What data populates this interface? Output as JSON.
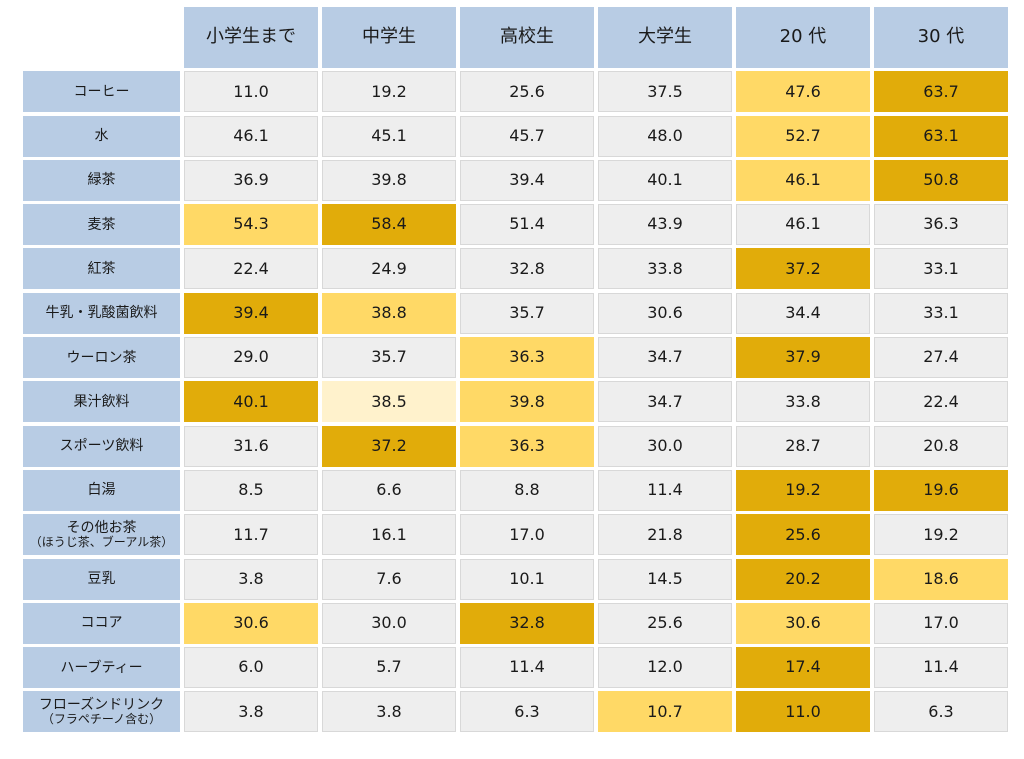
{
  "chart_data": {
    "type": "table",
    "columns": [
      "小学生まで",
      "中学生",
      "高校生",
      "大学生",
      "20 代",
      "30 代"
    ],
    "rows": [
      {
        "label": "コーヒー",
        "values": [
          11.0,
          19.2,
          25.6,
          37.5,
          47.6,
          63.7
        ],
        "highlight": [
          0,
          0,
          0,
          0,
          2,
          3
        ]
      },
      {
        "label": "水",
        "values": [
          46.1,
          45.1,
          45.7,
          48.0,
          52.7,
          63.1
        ],
        "highlight": [
          0,
          0,
          0,
          0,
          2,
          3
        ]
      },
      {
        "label": "緑茶",
        "values": [
          36.9,
          39.8,
          39.4,
          40.1,
          46.1,
          50.8
        ],
        "highlight": [
          0,
          0,
          0,
          0,
          2,
          3
        ]
      },
      {
        "label": "麦茶",
        "values": [
          54.3,
          58.4,
          51.4,
          43.9,
          46.1,
          36.3
        ],
        "highlight": [
          2,
          3,
          0,
          0,
          0,
          0
        ]
      },
      {
        "label": "紅茶",
        "values": [
          22.4,
          24.9,
          32.8,
          33.8,
          37.2,
          33.1
        ],
        "highlight": [
          0,
          0,
          0,
          0,
          3,
          0
        ]
      },
      {
        "label": "牛乳・乳酸菌飲料",
        "values": [
          39.4,
          38.8,
          35.7,
          30.6,
          34.4,
          33.1
        ],
        "highlight": [
          3,
          2,
          0,
          0,
          0,
          0
        ]
      },
      {
        "label": "ウーロン茶",
        "values": [
          29.0,
          35.7,
          36.3,
          34.7,
          37.9,
          27.4
        ],
        "highlight": [
          0,
          0,
          2,
          0,
          3,
          0
        ]
      },
      {
        "label": "果汁飲料",
        "values": [
          40.1,
          38.5,
          39.8,
          34.7,
          33.8,
          22.4
        ],
        "highlight": [
          3,
          1,
          2,
          0,
          0,
          0
        ]
      },
      {
        "label": "スポーツ飲料",
        "values": [
          31.6,
          37.2,
          36.3,
          30.0,
          28.7,
          20.8
        ],
        "highlight": [
          0,
          3,
          2,
          0,
          0,
          0
        ]
      },
      {
        "label": "白湯",
        "values": [
          8.5,
          6.6,
          8.8,
          11.4,
          19.2,
          19.6
        ],
        "highlight": [
          0,
          0,
          0,
          0,
          3,
          3
        ]
      },
      {
        "label": "その他お茶",
        "sublabel": "（ほうじ茶、ブーアル茶）",
        "values": [
          11.7,
          16.1,
          17.0,
          21.8,
          25.6,
          19.2
        ],
        "highlight": [
          0,
          0,
          0,
          0,
          3,
          0
        ]
      },
      {
        "label": "豆乳",
        "values": [
          3.8,
          7.6,
          10.1,
          14.5,
          20.2,
          18.6
        ],
        "highlight": [
          0,
          0,
          0,
          0,
          3,
          2
        ]
      },
      {
        "label": "ココア",
        "values": [
          30.6,
          30.0,
          32.8,
          25.6,
          30.6,
          17.0
        ],
        "highlight": [
          2,
          0,
          3,
          0,
          2,
          0
        ]
      },
      {
        "label": "ハーブティー",
        "values": [
          6.0,
          5.7,
          11.4,
          12.0,
          17.4,
          11.4
        ],
        "highlight": [
          0,
          0,
          0,
          0,
          3,
          0
        ]
      },
      {
        "label": "フローズンドリンク",
        "sublabel": "（フラペチーノ含む）",
        "values": [
          3.8,
          3.8,
          6.3,
          10.7,
          11.0,
          6.3
        ],
        "highlight": [
          0,
          0,
          0,
          2,
          3,
          0
        ]
      }
    ],
    "colors": {
      "header_bg": "#b8cce4",
      "cell_bg": "#eeeeee",
      "highlight_light": "#fff2cc",
      "highlight_mid": "#ffd966",
      "highlight_strong": "#e1ac0a"
    }
  }
}
